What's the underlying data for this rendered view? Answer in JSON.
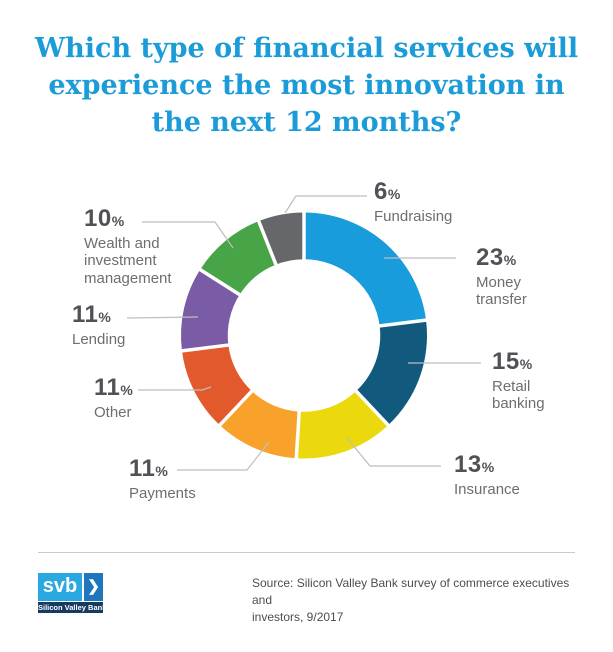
{
  "title": {
    "lines": [
      "Which type of financial services will",
      "experience the most innovation in",
      "the next 12 months?"
    ],
    "color": "#1B9CD8"
  },
  "chart_data": {
    "type": "pie",
    "subtype": "donut",
    "title": "Which type of financial services will experience the most innovation in the next 12 months?",
    "units": "%",
    "direction": "clockwise",
    "start_angle_deg": 0,
    "inner_radius_ratio": 0.62,
    "segments": [
      {
        "label": "Money transfer",
        "value": 23,
        "color": "#189CDB"
      },
      {
        "label": "Retail banking",
        "value": 15,
        "color": "#11597D"
      },
      {
        "label": "Insurance",
        "value": 13,
        "color": "#EBD80D"
      },
      {
        "label": "Payments",
        "value": 11,
        "color": "#F8A22B"
      },
      {
        "label": "Other",
        "value": 11,
        "color": "#E2592B"
      },
      {
        "label": "Lending",
        "value": 11,
        "color": "#7A5BA6"
      },
      {
        "label": "Wealth and investment management",
        "value": 10,
        "color": "#47A447"
      },
      {
        "label": "Fundraising",
        "value": 6,
        "color": "#66676A"
      }
    ]
  },
  "footer": {
    "source_lines": [
      "Source: Silicon Valley Bank survey of commerce executives and",
      "investors, 9/2017"
    ],
    "logo": {
      "abbr": "svb",
      "chevron_icon": "❯",
      "name": "Silicon Valley Bank"
    }
  }
}
